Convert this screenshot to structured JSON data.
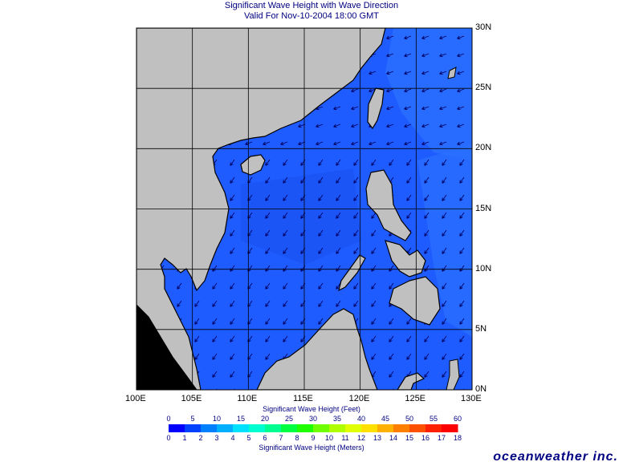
{
  "header": {
    "title": "Significant Wave Height with Wave Direction",
    "valid": "Valid For Nov-10-2004 18:00 GMT"
  },
  "map": {
    "lon_labels": [
      "100E",
      "105E",
      "110E",
      "115E",
      "120E",
      "125E",
      "130E"
    ],
    "lat_labels": [
      "30N",
      "25N",
      "20N",
      "15N",
      "10N",
      "5N",
      "0N"
    ],
    "lon_range": [
      100,
      130
    ],
    "lat_range": [
      0,
      30
    ],
    "grid": true,
    "land_color": "#c0c0c0",
    "sea_color": "#1f5cff",
    "arrow_color": "#000060"
  },
  "colorbar": {
    "feet_title": "Significant Wave Height (Feet)",
    "meters_title": "Significant Wave Height (Meters)",
    "feet_ticks": [
      "0",
      "5",
      "10",
      "15",
      "20",
      "25",
      "30",
      "35",
      "40",
      "45",
      "50",
      "55",
      "60"
    ],
    "meter_ticks": [
      "0",
      "1",
      "2",
      "3",
      "4",
      "5",
      "6",
      "7",
      "8",
      "9",
      "10",
      "11",
      "12",
      "13",
      "14",
      "15",
      "16",
      "17",
      "18"
    ],
    "colors": [
      "#0000ff",
      "#0040ff",
      "#0080ff",
      "#00b0ff",
      "#00e0ff",
      "#00ffd0",
      "#00ff90",
      "#00ff40",
      "#20ff00",
      "#70ff00",
      "#b0ff00",
      "#e0ff00",
      "#ffe000",
      "#ffb000",
      "#ff8000",
      "#ff5000",
      "#ff2000",
      "#ff0000"
    ]
  },
  "brand": "oceanweather inc."
}
